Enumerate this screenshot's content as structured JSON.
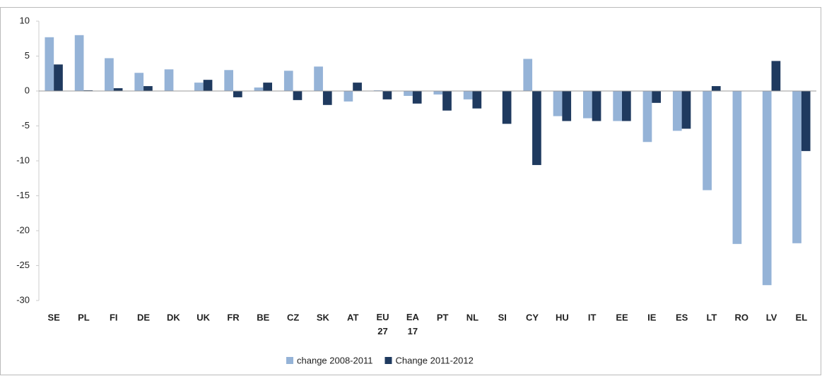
{
  "chart_data": {
    "type": "bar",
    "categories": [
      "SE",
      "PL",
      "FI",
      "DE",
      "DK",
      "UK",
      "FR",
      "BE",
      "CZ",
      "SK",
      "AT",
      "EU 27",
      "EA 17",
      "PT",
      "NL",
      "SI",
      "CY",
      "HU",
      "IT",
      "EE",
      "IE",
      "ES",
      "LT",
      "RO",
      "LV",
      "EL"
    ],
    "series": [
      {
        "name": "change 2008-2011",
        "color": "#95b3d7",
        "values": [
          7.7,
          8.0,
          4.7,
          2.6,
          3.1,
          1.2,
          3.0,
          0.5,
          2.9,
          3.5,
          -1.5,
          0.1,
          -0.7,
          -0.5,
          -1.2,
          0,
          4.6,
          -3.6,
          -3.9,
          -4.3,
          -7.3,
          -5.7,
          -14.2,
          -21.9,
          -27.8,
          -21.8
        ]
      },
      {
        "name": "Change 2011-2012",
        "color": "#1f3a5f",
        "values": [
          3.8,
          0.1,
          0.4,
          0.7,
          0,
          1.6,
          -0.9,
          1.2,
          -1.3,
          -2.0,
          1.2,
          -1.2,
          -1.8,
          -2.8,
          -2.5,
          -4.7,
          -10.6,
          -4.3,
          -4.3,
          -4.3,
          -1.7,
          -5.4,
          0.7,
          0,
          4.3,
          -8.6
        ]
      }
    ],
    "ylim": [
      -30,
      10
    ],
    "yticks": [
      -30,
      -25,
      -20,
      -15,
      -10,
      -5,
      0,
      5,
      10
    ],
    "grid": false,
    "legend": "bottom"
  }
}
